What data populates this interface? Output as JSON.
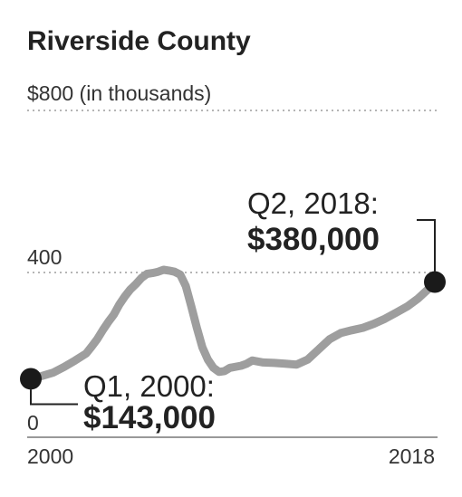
{
  "chart_data": {
    "type": "line",
    "title": "Riverside County",
    "ylabel": "$800 (in thousands)",
    "y_top_label": "$800 (in thousands)",
    "y_mid_label": "400",
    "y_zero_label": "0",
    "x_start_label": "2000",
    "x_end_label": "2018",
    "ylim": [
      0,
      800
    ],
    "xlim": [
      2000.0,
      2018.25
    ],
    "grid": "dotted lines at 400 and 800",
    "series": [
      {
        "color": "#9e9e9e",
        "points": [
          [
            2000.0,
            143
          ],
          [
            2000.5,
            150
          ],
          [
            2001.0,
            158
          ],
          [
            2001.5,
            172
          ],
          [
            2002.0,
            188
          ],
          [
            2002.5,
            205
          ],
          [
            2002.75,
            222
          ],
          [
            2003.0,
            240
          ],
          [
            2003.25,
            262
          ],
          [
            2003.5,
            282
          ],
          [
            2003.75,
            300
          ],
          [
            2004.0,
            325
          ],
          [
            2004.25,
            345
          ],
          [
            2004.5,
            362
          ],
          [
            2004.75,
            375
          ],
          [
            2005.0,
            390
          ],
          [
            2005.25,
            400
          ],
          [
            2005.5,
            402
          ],
          [
            2005.75,
            405
          ],
          [
            2006.0,
            410
          ],
          [
            2006.25,
            408
          ],
          [
            2006.5,
            405
          ],
          [
            2006.75,
            398
          ],
          [
            2007.0,
            370
          ],
          [
            2007.25,
            320
          ],
          [
            2007.5,
            268
          ],
          [
            2007.75,
            220
          ],
          [
            2008.0,
            190
          ],
          [
            2008.25,
            170
          ],
          [
            2008.5,
            160
          ],
          [
            2008.75,
            162
          ],
          [
            2009.0,
            170
          ],
          [
            2009.5,
            175
          ],
          [
            2009.75,
            180
          ],
          [
            2010.0,
            188
          ],
          [
            2010.5,
            183
          ],
          [
            2011.0,
            182
          ],
          [
            2011.5,
            180
          ],
          [
            2012.0,
            178
          ],
          [
            2012.5,
            190
          ],
          [
            2013.0,
            215
          ],
          [
            2013.5,
            240
          ],
          [
            2014.0,
            255
          ],
          [
            2014.5,
            262
          ],
          [
            2015.0,
            268
          ],
          [
            2015.5,
            278
          ],
          [
            2016.0,
            290
          ],
          [
            2016.5,
            305
          ],
          [
            2017.0,
            320
          ],
          [
            2017.5,
            340
          ],
          [
            2018.0,
            365
          ],
          [
            2018.25,
            380
          ]
        ]
      }
    ],
    "annotations": [
      {
        "period": "Q1, 2000:",
        "value": "$143,000",
        "x": 2000.0,
        "y": 143
      },
      {
        "period": "Q2, 2018:",
        "value": "$380,000",
        "x": 2018.25,
        "y": 380
      }
    ],
    "colors": {
      "line": "#9e9e9e",
      "marker": "#1a1a1a",
      "gridline": "#b5b5b5",
      "baseline": "#999999"
    }
  }
}
